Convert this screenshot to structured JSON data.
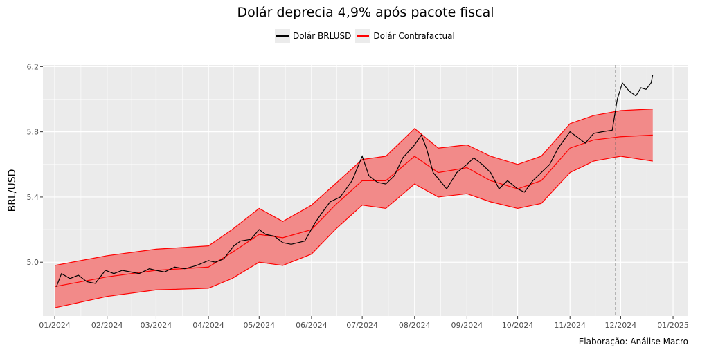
{
  "chart_data": {
    "type": "line",
    "title": "Dolár deprecia 4,9% após pacote fiscal",
    "ylabel": "BRL/USD",
    "xlabel": "",
    "caption": "Elaboração: Análise Macro",
    "ylim": [
      4.67,
      6.21
    ],
    "yticks": [
      5.0,
      5.4,
      5.8,
      6.2
    ],
    "ytick_labels": [
      "5.0",
      "5.4",
      "5.8",
      "6.2"
    ],
    "xlim": [
      "2023-12-25",
      "2025-01-10"
    ],
    "xticks": [
      "2024-01-01",
      "2024-02-01",
      "2024-03-01",
      "2024-04-01",
      "2024-05-01",
      "2024-06-01",
      "2024-07-01",
      "2024-08-01",
      "2024-09-01",
      "2024-10-01",
      "2024-11-01",
      "2024-12-01",
      "2025-01-01"
    ],
    "xtick_labels": [
      "01/2024",
      "02/2024",
      "03/2024",
      "04/2024",
      "05/2024",
      "06/2024",
      "07/2024",
      "08/2024",
      "09/2024",
      "10/2024",
      "11/2024",
      "12/2024",
      "01/2025"
    ],
    "intervention_date": "2024-11-28",
    "grid": true,
    "legend_position": "top",
    "series": [
      {
        "name": "Dolár BRLUSD",
        "color": "#000000",
        "points": [
          [
            "2024-01-02",
            4.85
          ],
          [
            "2024-01-05",
            4.93
          ],
          [
            "2024-01-10",
            4.9
          ],
          [
            "2024-01-15",
            4.92
          ],
          [
            "2024-01-20",
            4.88
          ],
          [
            "2024-01-25",
            4.87
          ],
          [
            "2024-01-31",
            4.95
          ],
          [
            "2024-02-05",
            4.93
          ],
          [
            "2024-02-10",
            4.95
          ],
          [
            "2024-02-15",
            4.94
          ],
          [
            "2024-02-20",
            4.93
          ],
          [
            "2024-02-26",
            4.96
          ],
          [
            "2024-03-01",
            4.95
          ],
          [
            "2024-03-06",
            4.94
          ],
          [
            "2024-03-12",
            4.97
          ],
          [
            "2024-03-18",
            4.96
          ],
          [
            "2024-03-25",
            4.98
          ],
          [
            "2024-04-01",
            5.01
          ],
          [
            "2024-04-05",
            5.0
          ],
          [
            "2024-04-10",
            5.02
          ],
          [
            "2024-04-16",
            5.1
          ],
          [
            "2024-04-20",
            5.13
          ],
          [
            "2024-04-26",
            5.14
          ],
          [
            "2024-05-01",
            5.2
          ],
          [
            "2024-05-05",
            5.17
          ],
          [
            "2024-05-10",
            5.16
          ],
          [
            "2024-05-15",
            5.12
          ],
          [
            "2024-05-20",
            5.11
          ],
          [
            "2024-05-28",
            5.13
          ],
          [
            "2024-06-03",
            5.24
          ],
          [
            "2024-06-07",
            5.3
          ],
          [
            "2024-06-12",
            5.37
          ],
          [
            "2024-06-18",
            5.4
          ],
          [
            "2024-06-25",
            5.5
          ],
          [
            "2024-07-01",
            5.65
          ],
          [
            "2024-07-05",
            5.53
          ],
          [
            "2024-07-10",
            5.49
          ],
          [
            "2024-07-15",
            5.48
          ],
          [
            "2024-07-20",
            5.53
          ],
          [
            "2024-07-25",
            5.64
          ],
          [
            "2024-08-01",
            5.72
          ],
          [
            "2024-08-05",
            5.78
          ],
          [
            "2024-08-08",
            5.7
          ],
          [
            "2024-08-12",
            5.55
          ],
          [
            "2024-08-16",
            5.5
          ],
          [
            "2024-08-20",
            5.45
          ],
          [
            "2024-08-26",
            5.55
          ],
          [
            "2024-09-01",
            5.6
          ],
          [
            "2024-09-05",
            5.64
          ],
          [
            "2024-09-10",
            5.6
          ],
          [
            "2024-09-15",
            5.55
          ],
          [
            "2024-09-20",
            5.45
          ],
          [
            "2024-09-25",
            5.5
          ],
          [
            "2024-10-01",
            5.45
          ],
          [
            "2024-10-05",
            5.43
          ],
          [
            "2024-10-10",
            5.5
          ],
          [
            "2024-10-15",
            5.55
          ],
          [
            "2024-10-20",
            5.6
          ],
          [
            "2024-10-25",
            5.7
          ],
          [
            "2024-11-01",
            5.8
          ],
          [
            "2024-11-05",
            5.77
          ],
          [
            "2024-11-10",
            5.73
          ],
          [
            "2024-11-15",
            5.79
          ],
          [
            "2024-11-20",
            5.8
          ],
          [
            "2024-11-26",
            5.81
          ],
          [
            "2024-11-29",
            6.0
          ],
          [
            "2024-12-02",
            6.1
          ],
          [
            "2024-12-06",
            6.05
          ],
          [
            "2024-12-10",
            6.02
          ],
          [
            "2024-12-13",
            6.07
          ],
          [
            "2024-12-16",
            6.06
          ],
          [
            "2024-12-19",
            6.1
          ],
          [
            "2024-12-20",
            6.15
          ]
        ]
      },
      {
        "name": "Dolár Contrafactual",
        "color": "#ff0000",
        "band_fill": "#f28a89",
        "points": [
          [
            "2024-01-01",
            4.85,
            4.72,
            4.98
          ],
          [
            "2024-02-01",
            4.91,
            4.79,
            5.04
          ],
          [
            "2024-03-01",
            4.95,
            4.83,
            5.08
          ],
          [
            "2024-04-01",
            4.97,
            4.84,
            5.1
          ],
          [
            "2024-04-15",
            5.06,
            4.9,
            5.2
          ],
          [
            "2024-05-01",
            5.17,
            5.0,
            5.33
          ],
          [
            "2024-05-15",
            5.15,
            4.98,
            5.25
          ],
          [
            "2024-06-01",
            5.2,
            5.05,
            5.35
          ],
          [
            "2024-06-15",
            5.35,
            5.2,
            5.48
          ],
          [
            "2024-07-01",
            5.5,
            5.35,
            5.63
          ],
          [
            "2024-07-15",
            5.5,
            5.33,
            5.65
          ],
          [
            "2024-08-01",
            5.65,
            5.48,
            5.82
          ],
          [
            "2024-08-15",
            5.55,
            5.4,
            5.7
          ],
          [
            "2024-09-01",
            5.58,
            5.42,
            5.72
          ],
          [
            "2024-09-15",
            5.5,
            5.37,
            5.65
          ],
          [
            "2024-10-01",
            5.45,
            5.33,
            5.6
          ],
          [
            "2024-10-15",
            5.5,
            5.36,
            5.65
          ],
          [
            "2024-11-01",
            5.7,
            5.55,
            5.85
          ],
          [
            "2024-11-15",
            5.75,
            5.62,
            5.9
          ],
          [
            "2024-12-01",
            5.77,
            5.65,
            5.93
          ],
          [
            "2024-12-20",
            5.78,
            5.62,
            5.94
          ]
        ]
      }
    ]
  }
}
